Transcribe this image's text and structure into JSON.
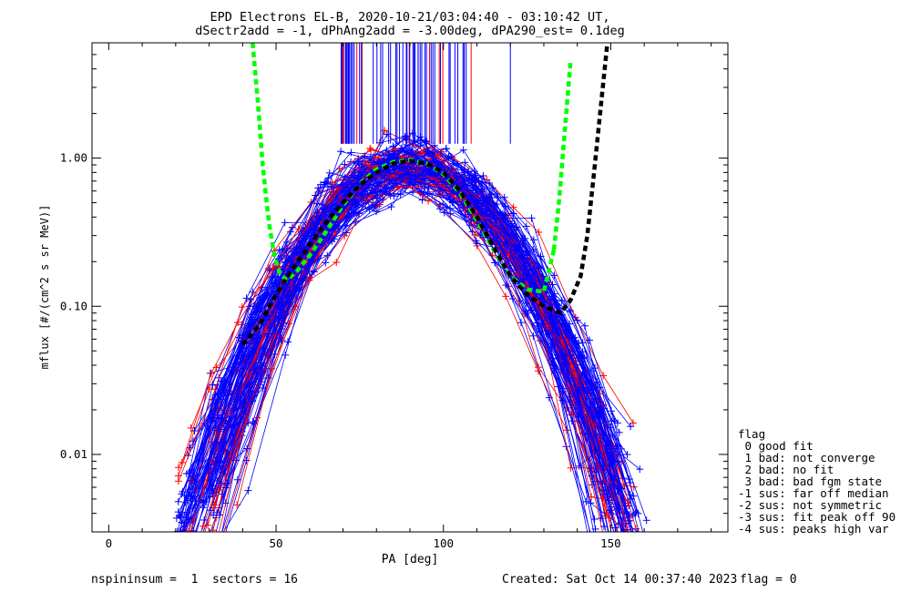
{
  "chart_data": {
    "type": "line",
    "title": "EPD Electrons EL-B, 2020-10-21/03:04:40 - 03:10:42 UT,",
    "subtitle": "dSectr2add = -1, dPhAng2add = -3.00deg, dPA290_est=   0.1deg",
    "xlabel": "PA [deg]",
    "ylabel": "mflux [#/(cm^2 s sr MeV)]",
    "xlim": [
      -5,
      185
    ],
    "ylim": [
      0.003,
      6
    ],
    "yscale": "log",
    "x_ticks": [
      "0",
      "50",
      "100",
      "150"
    ],
    "x_tick_values": [
      0,
      50,
      100,
      150
    ],
    "y_ticks": [
      "0.01",
      "0.10",
      "1.00"
    ],
    "y_tick_values": [
      0.01,
      0.1,
      1.0
    ],
    "series": [
      {
        "role": "fit-low-pa",
        "color": "#00ff00",
        "dashed": true,
        "x": [
          43,
          44.5,
          46,
          47,
          48,
          49.5,
          51,
          53,
          56,
          60,
          65,
          70,
          75,
          80,
          85,
          90,
          95,
          100,
          105,
          110,
          115,
          120,
          125,
          130,
          133
        ],
        "y": [
          6,
          2.5,
          0.9,
          0.55,
          0.35,
          0.22,
          0.17,
          0.15,
          0.17,
          0.22,
          0.32,
          0.48,
          0.67,
          0.84,
          0.94,
          0.97,
          0.92,
          0.78,
          0.58,
          0.38,
          0.24,
          0.16,
          0.13,
          0.125,
          0.24
        ]
      },
      {
        "role": "fit-high-pa",
        "color": "#00ff00",
        "dashed": true,
        "x": [
          133,
          134.5,
          136,
          138
        ],
        "y": [
          0.24,
          0.5,
          1.3,
          4.5
        ]
      },
      {
        "role": "fit-reference",
        "color": "#000000",
        "dashed": true,
        "x": [
          40,
          45,
          50,
          55,
          60,
          65,
          70,
          75,
          80,
          85,
          90,
          95,
          100,
          105,
          110,
          115,
          120,
          125,
          130,
          135,
          138,
          141,
          143,
          145,
          147,
          149
        ],
        "y": [
          0.055,
          0.075,
          0.12,
          0.18,
          0.26,
          0.37,
          0.5,
          0.66,
          0.8,
          0.92,
          0.96,
          0.92,
          0.8,
          0.6,
          0.4,
          0.25,
          0.16,
          0.12,
          0.1,
          0.09,
          0.11,
          0.16,
          0.3,
          0.8,
          2.2,
          6
        ]
      }
    ],
    "observation_sweeps": {
      "color_primary": "#0000ff",
      "color_alt": "#ff0000",
      "marker": "+"
    },
    "legend_position": "right"
  },
  "legend": {
    "title": "flag",
    "items": [
      " 0 good fit",
      " 1 bad: not converge",
      " 2 bad: no fit",
      " 3 bad: bad fgm state",
      "-1 sus: far off median",
      "-2 sus: not symmetric",
      "-3 sus: fit peak off 90",
      "-4 sus: peaks high var"
    ]
  },
  "footer": {
    "left": "nspininsum =  1  sectors = 16",
    "created": "Created: Sat Oct 14 00:37:40 2023",
    "flag": "flag = 0"
  }
}
